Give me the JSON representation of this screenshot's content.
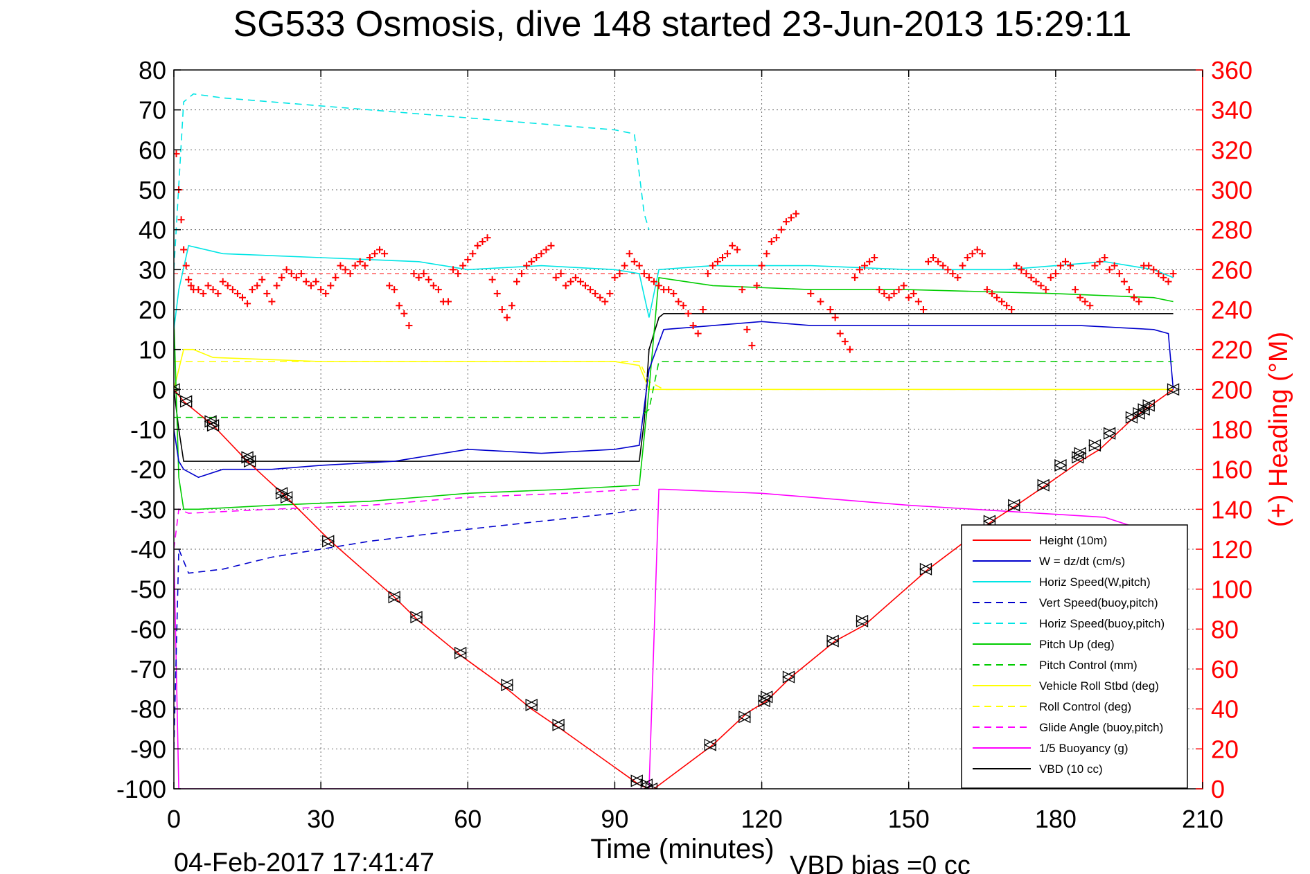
{
  "title": "SG533 Osmosis, dive 148 started 23-Jun-2013 15:29:11",
  "footer": {
    "timestamp": "04-Feb-2017 17:41:47",
    "vbd_bias": "VBD bias =0 cc"
  },
  "chart_data": {
    "type": "line",
    "title": "SG533 Osmosis, dive 148 started 23-Jun-2013 15:29:11",
    "xlabel": "Time (minutes)",
    "ylabel": "",
    "y2label": "(+) Heading (°M)",
    "xlim": [
      0,
      210
    ],
    "ylim": [
      -100,
      80
    ],
    "y2lim": [
      0,
      360
    ],
    "xticks": [
      0,
      30,
      60,
      90,
      120,
      150,
      180,
      210
    ],
    "yticks": [
      80,
      70,
      60,
      50,
      40,
      30,
      20,
      10,
      0,
      -10,
      -20,
      -30,
      -40,
      -50,
      -60,
      -70,
      -80,
      -90,
      -100
    ],
    "y2ticks": [
      360,
      340,
      320,
      300,
      280,
      260,
      240,
      220,
      200,
      180,
      160,
      140,
      120,
      100,
      80,
      60,
      40,
      20,
      0
    ],
    "grid": true,
    "legend_position": "bottom-right",
    "colors": {
      "height": "#ff0000",
      "w": "#0000cc",
      "horiz_speed": "#00e5e5",
      "pitch": "#00cc00",
      "roll": "#ffff00",
      "glide": "#ff00ff",
      "buoyancy": "#ff00ff",
      "vbd": "#000000",
      "heading": "#ff0000",
      "right_axis": "#ff0000"
    },
    "legend": [
      {
        "label": "Height (10m)",
        "color": "#ff0000",
        "dash": false
      },
      {
        "label": "W = dz/dt (cm/s)",
        "color": "#0000cc",
        "dash": false
      },
      {
        "label": "Horiz Speed(W,pitch)",
        "color": "#00e5e5",
        "dash": false
      },
      {
        "label": "Vert Speed(buoy,pitch)",
        "color": "#0000cc",
        "dash": true
      },
      {
        "label": "Horiz Speed(buoy,pitch)",
        "color": "#00e5e5",
        "dash": true
      },
      {
        "label": "Pitch Up (deg)",
        "color": "#00cc00",
        "dash": false
      },
      {
        "label": "Pitch Control (mm)",
        "color": "#00cc00",
        "dash": true
      },
      {
        "label": "Vehicle Roll Stbd (deg)",
        "color": "#ffff00",
        "dash": false
      },
      {
        "label": "Roll Control (deg)",
        "color": "#ffff00",
        "dash": true
      },
      {
        "label": "Glide Angle (buoy,pitch)",
        "color": "#ff00ff",
        "dash": true
      },
      {
        "label": "1/5 Buoyancy (g)",
        "color": "#ff00ff",
        "dash": false
      },
      {
        "label": "VBD (10 cc)",
        "color": "#000000",
        "dash": false
      }
    ],
    "series": [
      {
        "name": "Height (10m)",
        "axis": "left",
        "color": "#ff0000",
        "dash": false,
        "x": [
          0,
          2,
          8,
          15,
          23,
          32,
          45,
          50,
          59,
          68,
          73,
          79,
          95,
          97,
          98,
          110,
          117,
          121,
          126,
          135,
          141,
          154,
          167,
          172,
          178,
          185,
          189,
          196,
          204
        ],
        "y": [
          0,
          -3,
          -9,
          -18,
          -27,
          -38,
          -52,
          -58,
          -67,
          -75,
          -80,
          -85,
          -99,
          -100,
          -100,
          -89,
          -81,
          -78,
          -72,
          -63,
          -59,
          -45,
          -33,
          -29,
          -24,
          -18,
          -15,
          -7,
          0
        ]
      },
      {
        "name": "W = dz/dt (cm/s)",
        "axis": "left",
        "color": "#0000cc",
        "dash": false,
        "x": [
          0,
          1,
          2,
          5,
          10,
          20,
          30,
          45,
          60,
          75,
          90,
          95,
          97,
          100,
          110,
          120,
          130,
          150,
          170,
          185,
          200,
          203,
          204
        ],
        "y": [
          -10,
          -18,
          -20,
          -22,
          -20,
          -20,
          -19,
          -18,
          -15,
          -16,
          -15,
          -14,
          5,
          15,
          16,
          17,
          16,
          16,
          16,
          16,
          15,
          14,
          0
        ]
      },
      {
        "name": "Horiz Speed(W,pitch)",
        "axis": "left",
        "color": "#00e5e5",
        "dash": false,
        "x": [
          0,
          1,
          3,
          10,
          30,
          50,
          60,
          75,
          90,
          95,
          97,
          99,
          110,
          130,
          150,
          170,
          190,
          200,
          204
        ],
        "y": [
          15,
          25,
          36,
          34,
          33,
          32,
          30,
          31,
          30,
          29,
          18,
          30,
          31,
          31,
          30,
          30,
          32,
          30,
          28
        ]
      },
      {
        "name": "Vert Speed(buoy,pitch)",
        "axis": "left",
        "color": "#0000cc",
        "dash": true,
        "x": [
          0,
          1,
          3,
          10,
          20,
          40,
          60,
          75,
          90,
          95
        ],
        "y": [
          -90,
          -40,
          -46,
          -45,
          -42,
          -38,
          -35,
          -33,
          -31,
          -30
        ]
      },
      {
        "name": "Horiz Speed(buoy,pitch)",
        "axis": "left",
        "color": "#00e5e5",
        "dash": true,
        "x": [
          0,
          2,
          4,
          10,
          30,
          50,
          70,
          90,
          94,
          96,
          97
        ],
        "y": [
          30,
          72,
          74,
          73,
          71,
          69,
          67,
          65,
          64,
          44,
          40
        ]
      },
      {
        "name": "Pitch Up (deg)",
        "axis": "left",
        "color": "#00cc00",
        "dash": false,
        "x": [
          0,
          1,
          2,
          5,
          20,
          40,
          60,
          80,
          95,
          97,
          99,
          110,
          130,
          150,
          180,
          200,
          204
        ],
        "y": [
          18,
          -22,
          -30,
          -30,
          -29,
          -28,
          -26,
          -25,
          -24,
          0,
          28,
          26,
          25,
          25,
          24,
          23,
          22
        ]
      },
      {
        "name": "Pitch Control (mm)",
        "axis": "left",
        "color": "#00cc00",
        "dash": true,
        "x": [
          0,
          95,
          97,
          99,
          204
        ],
        "y": [
          -7,
          -7,
          -5,
          7,
          7
        ]
      },
      {
        "name": "Vehicle Roll Stbd (deg)",
        "axis": "left",
        "color": "#ffff00",
        "dash": false,
        "x": [
          0,
          2,
          4,
          8,
          30,
          60,
          90,
          95,
          97,
          100,
          130,
          160,
          190,
          204
        ],
        "y": [
          0,
          10,
          10,
          8,
          7,
          7,
          7,
          6,
          0,
          0,
          0,
          0,
          0,
          0
        ]
      },
      {
        "name": "Roll Control (deg)",
        "axis": "left",
        "color": "#ffff00",
        "dash": true,
        "x": [
          0,
          95,
          97,
          100,
          204
        ],
        "y": [
          7,
          7,
          2,
          0,
          0
        ]
      },
      {
        "name": "Glide Angle (buoy,pitch)",
        "axis": "left",
        "color": "#ff00ff",
        "dash": true,
        "x": [
          0,
          1,
          3,
          20,
          40,
          60,
          80,
          95
        ],
        "y": [
          -40,
          -30,
          -31,
          -30,
          -29,
          -27,
          -26,
          -25
        ]
      },
      {
        "name": "1/5 Buoyancy (g)",
        "axis": "left",
        "color": "#ff00ff",
        "dash": false,
        "x": [
          0,
          1,
          2,
          95,
          97,
          99,
          100,
          120,
          150,
          190,
          195,
          203
        ],
        "y": [
          -40,
          -100,
          -100,
          -100,
          -100,
          -25,
          -25,
          -26,
          -29,
          -32,
          -34,
          -34
        ]
      },
      {
        "name": "VBD (10 cc)",
        "axis": "left",
        "color": "#000000",
        "dash": false,
        "x": [
          0,
          1,
          2,
          3,
          95,
          96,
          97,
          99,
          100,
          204
        ],
        "y": [
          0,
          -10,
          -18,
          -18,
          -18,
          -8,
          10,
          18,
          19,
          19
        ]
      }
    ],
    "heading_markers": {
      "axis": "right",
      "marker": "+",
      "color": "#ff0000",
      "reference_level": 258,
      "x": [
        0.5,
        1,
        1.5,
        2,
        2.5,
        3,
        3.5,
        4,
        5,
        6,
        7,
        8,
        9,
        10,
        11,
        12,
        13,
        14,
        15,
        16,
        17,
        18,
        19,
        20,
        21,
        22,
        23,
        24,
        25,
        26,
        27,
        28,
        29,
        30,
        31,
        32,
        33,
        34,
        35,
        36,
        37,
        38,
        39,
        40,
        41,
        42,
        43,
        44,
        45,
        46,
        47,
        48,
        49,
        50,
        51,
        52,
        53,
        54,
        55,
        56,
        57,
        58,
        59,
        60,
        61,
        62,
        63,
        64,
        65,
        66,
        67,
        68,
        69,
        70,
        71,
        72,
        73,
        74,
        75,
        76,
        77,
        78,
        79,
        80,
        81,
        82,
        83,
        84,
        85,
        86,
        87,
        88,
        89,
        90,
        91,
        92,
        93,
        94,
        95,
        96,
        97,
        98,
        99,
        100,
        101,
        102,
        103,
        104,
        105,
        106,
        107,
        108,
        109,
        110,
        111,
        112,
        113,
        114,
        115,
        116,
        117,
        118,
        119,
        120,
        121,
        122,
        123,
        124,
        125,
        126,
        127,
        130,
        132,
        134,
        135,
        136,
        137,
        138,
        139,
        140,
        141,
        142,
        143,
        144,
        145,
        146,
        147,
        148,
        149,
        150,
        151,
        152,
        153,
        154,
        155,
        156,
        157,
        158,
        159,
        160,
        161,
        162,
        163,
        164,
        165,
        166,
        167,
        168,
        169,
        170,
        171,
        172,
        173,
        174,
        175,
        176,
        177,
        178,
        179,
        180,
        181,
        182,
        183,
        184,
        185,
        186,
        187,
        188,
        189,
        190,
        191,
        192,
        193,
        194,
        195,
        196,
        197,
        198,
        199,
        200,
        201,
        202,
        203,
        204
      ],
      "y": [
        318,
        300,
        285,
        270,
        262,
        255,
        252,
        250,
        250,
        248,
        252,
        250,
        248,
        254,
        252,
        250,
        248,
        246,
        243,
        250,
        252,
        255,
        248,
        244,
        252,
        256,
        260,
        258,
        256,
        258,
        254,
        252,
        254,
        250,
        248,
        252,
        256,
        262,
        260,
        258,
        262,
        264,
        262,
        266,
        268,
        270,
        268,
        252,
        250,
        242,
        238,
        232,
        258,
        256,
        258,
        255,
        252,
        250,
        244,
        244,
        260,
        258,
        262,
        265,
        268,
        272,
        274,
        276,
        255,
        248,
        240,
        236,
        242,
        254,
        258,
        262,
        264,
        266,
        268,
        270,
        272,
        256,
        258,
        252,
        254,
        256,
        254,
        252,
        250,
        248,
        246,
        244,
        248,
        256,
        258,
        262,
        268,
        264,
        262,
        258,
        256,
        254,
        252,
        250,
        250,
        248,
        244,
        242,
        238,
        232,
        228,
        240,
        258,
        262,
        264,
        266,
        268,
        272,
        270,
        250,
        230,
        222,
        252,
        262,
        268,
        274,
        276,
        280,
        284,
        286,
        288,
        248,
        244,
        240,
        236,
        228,
        224,
        220,
        256,
        260,
        262,
        264,
        266,
        250,
        248,
        246,
        248,
        250,
        252,
        246,
        248,
        244,
        240,
        264,
        266,
        264,
        262,
        260,
        258,
        256,
        262,
        266,
        268,
        270,
        268,
        250,
        248,
        246,
        244,
        242,
        240,
        262,
        260,
        258,
        256,
        254,
        252,
        250,
        256,
        258,
        262,
        264,
        262,
        250,
        246,
        244,
        242,
        262,
        264,
        266,
        260,
        262,
        258,
        254,
        250,
        246,
        244,
        262,
        262,
        260,
        258,
        256,
        254,
        258
      ]
    },
    "triangle_markers": {
      "axis": "left",
      "series": "Height (10m)",
      "x": [
        0,
        2.5,
        7.5,
        8,
        15,
        15.5,
        22,
        23,
        31.5,
        45,
        49.5,
        58.5,
        68,
        73,
        78.5,
        94.5,
        96.5,
        97.5,
        109.5,
        116.5,
        120.5,
        121,
        125.5,
        134.5,
        140.5,
        153.5,
        166.5,
        171.5,
        177.5,
        181,
        184.5,
        185,
        188,
        191,
        195.5,
        197,
        198,
        199,
        204
      ],
      "y": [
        0,
        -3,
        -8,
        -9,
        -17,
        -18,
        -26,
        -27,
        -38,
        -52,
        -57,
        -66,
        -74,
        -79,
        -84,
        -98,
        -99,
        -100,
        -89,
        -82,
        -78,
        -77,
        -72,
        -63,
        -58,
        -45,
        -33,
        -29,
        -24,
        -19,
        -17,
        -16,
        -14,
        -11,
        -7,
        -6,
        -5,
        -4,
        0
      ]
    }
  }
}
